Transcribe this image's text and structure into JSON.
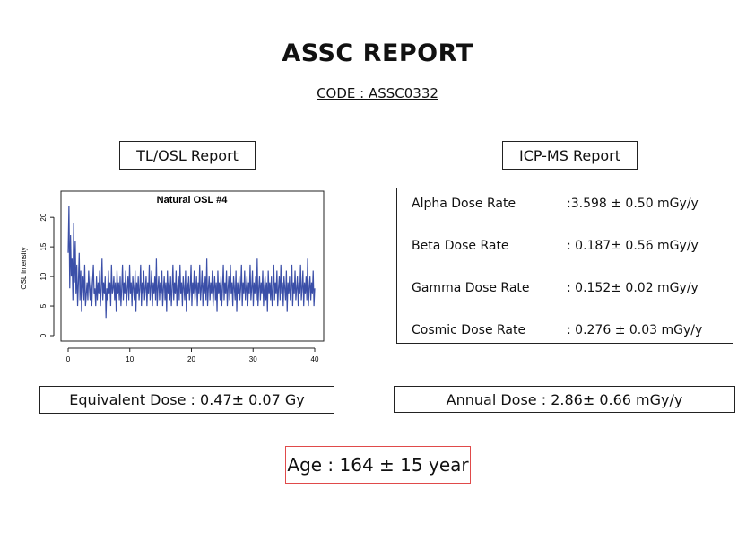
{
  "report": {
    "title": "ASSC REPORT",
    "code": "CODE : ASSC0332"
  },
  "tlosl": {
    "header": "TL/OSL Report",
    "equivalent_dose": "Equivalent Dose : 0.47± 0.07 Gy"
  },
  "icpms": {
    "header": "ICP-MS Report",
    "rates": [
      {
        "label": "Alpha Dose Rate",
        "value": ":3.598 ± 0.50 mGy/y"
      },
      {
        "label": "Beta Dose Rate",
        "value": ": 0.187± 0.56 mGy/y"
      },
      {
        "label": "Gamma Dose Rate",
        "value": ": 0.152± 0.02 mGy/y"
      },
      {
        "label": "Cosmic Dose Rate",
        "value": ": 0.276 ± 0.03 mGy/y"
      }
    ],
    "annual_dose": "Annual Dose : 2.86± 0.66 mGy/y"
  },
  "age": {
    "text": "Age : 164 ± 15 year",
    "border_color": "#e04a4a"
  },
  "chart_data": {
    "type": "line",
    "title": "Natural OSL #4",
    "xlabel": "",
    "ylabel": "OSL intensity",
    "xlim": [
      0,
      40
    ],
    "ylim": [
      0,
      22
    ],
    "x_ticks": [
      "0",
      "10",
      "20",
      "30",
      "40"
    ],
    "y_ticks": [
      "0",
      "5",
      "10",
      "15",
      "20"
    ],
    "line_color": "#3b4fa8",
    "series": [
      {
        "values": [
          14,
          22,
          8,
          17,
          10,
          13,
          6,
          19,
          9,
          16,
          7,
          12,
          5,
          9,
          14,
          6,
          11,
          4,
          8,
          10,
          6,
          12,
          5,
          7,
          9,
          6,
          11,
          8,
          6,
          10,
          5,
          9,
          12,
          7,
          8,
          5,
          10,
          6,
          9,
          7,
          11,
          5,
          8,
          13,
          6,
          9,
          7,
          10,
          3,
          8,
          6,
          11,
          7,
          9,
          5,
          12,
          7,
          8,
          10,
          6,
          9,
          4,
          11,
          7,
          9,
          6,
          10,
          5,
          8,
          12,
          6,
          9,
          7,
          11,
          5,
          8,
          10,
          6,
          12,
          7,
          9,
          5,
          10,
          8,
          6,
          11,
          4,
          9,
          7,
          10,
          6,
          8,
          12,
          5,
          9,
          7,
          11,
          6,
          8,
          10,
          5,
          9,
          7,
          12,
          6,
          8,
          11,
          5,
          9,
          7,
          10,
          6,
          13,
          5,
          8,
          10,
          6,
          9,
          7,
          11,
          5,
          8,
          10,
          6,
          9,
          4,
          11,
          7,
          9,
          6,
          10,
          5,
          8,
          12,
          6,
          9,
          7,
          11,
          5,
          8,
          10,
          6,
          12,
          7,
          9,
          5,
          10,
          8,
          6,
          11,
          4,
          9,
          7,
          10,
          6,
          8,
          12,
          5,
          9,
          7,
          11,
          6,
          8,
          10,
          5,
          9,
          7,
          12,
          6,
          8,
          11,
          5,
          9,
          7,
          10,
          6,
          13,
          5,
          8,
          10,
          6,
          9,
          7,
          11,
          5,
          8,
          10,
          6,
          9,
          4,
          11,
          7,
          9,
          6,
          10,
          5,
          8,
          12,
          6,
          9,
          7,
          11,
          5,
          8,
          10,
          6,
          12,
          7,
          9,
          5,
          10,
          8,
          6,
          11,
          4,
          9,
          7,
          10,
          6,
          8,
          12,
          5,
          9,
          7,
          11,
          6,
          8,
          10,
          5,
          9,
          7,
          12,
          6,
          8,
          11,
          5,
          9,
          7,
          10,
          6,
          13,
          5,
          8,
          10,
          6,
          9,
          7,
          11,
          5,
          8,
          10,
          6,
          9,
          4,
          11,
          7,
          9,
          6,
          10,
          5,
          8,
          12,
          6,
          9,
          7,
          11,
          5,
          8,
          10,
          6,
          12,
          7,
          9,
          5,
          10,
          8,
          6,
          11,
          4,
          9,
          7,
          10,
          6,
          8,
          12,
          5,
          9,
          7,
          11,
          6,
          8,
          10,
          5,
          9,
          7,
          12,
          6,
          8,
          11,
          5,
          9,
          7,
          10,
          6,
          13,
          5,
          8,
          10,
          6,
          9,
          7,
          11,
          5,
          8
        ]
      }
    ]
  }
}
